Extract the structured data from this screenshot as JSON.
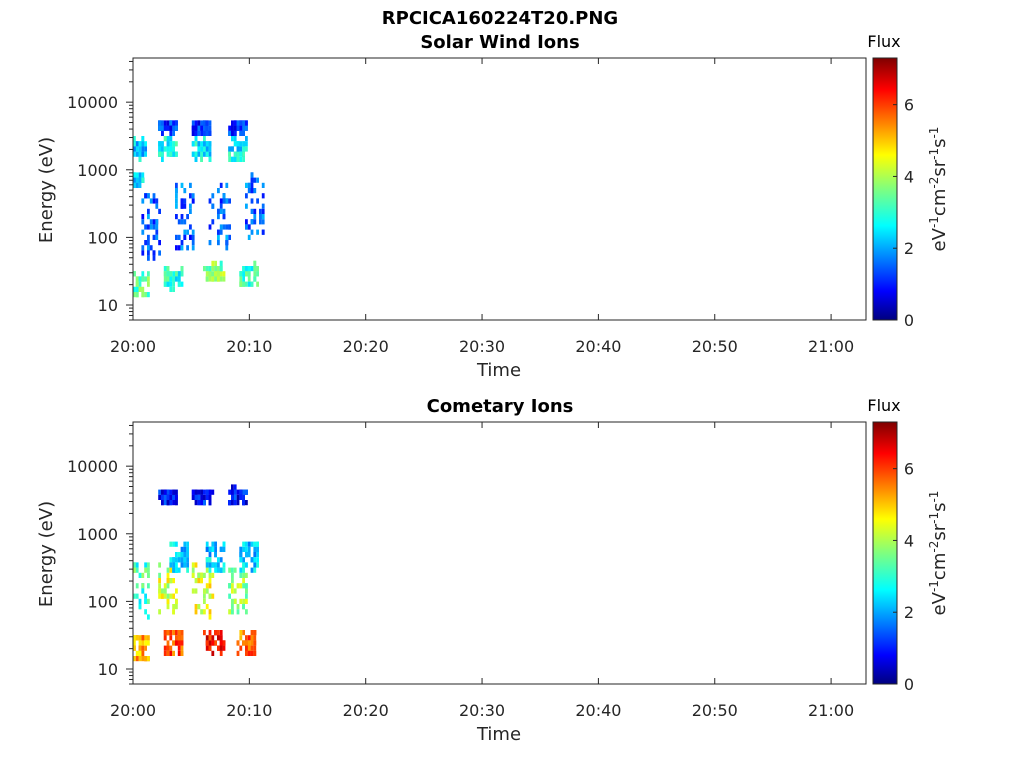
{
  "figure_title": "RPCICA160224T20.PNG",
  "chart_data": [
    {
      "type": "heatmap",
      "title": "Solar Wind Ions",
      "xlabel": "Time",
      "ylabel": "Energy (eV)",
      "y_scale": "log",
      "xlim": [
        "20:00",
        "21:03"
      ],
      "ylim": [
        6,
        45000
      ],
      "x_ticks": [
        "20:00",
        "20:10",
        "20:20",
        "20:30",
        "20:40",
        "20:50",
        "21:00"
      ],
      "y_ticks": [
        "10",
        "100",
        "1000",
        "10000"
      ],
      "colorbar": {
        "title": "Flux",
        "label": "eV-1cm-2sr-1s-1",
        "ticks": [
          "0",
          "2",
          "4",
          "6"
        ],
        "range": [
          0,
          7.3
        ],
        "colormap": "jet"
      },
      "clusters": [
        {
          "t": 0.3,
          "e": 2000,
          "v": 2.5,
          "spread_e": 1.4
        },
        {
          "t": 3.0,
          "e": 2000,
          "v": 2.7,
          "spread_e": 1.4
        },
        {
          "t": 6.0,
          "e": 2000,
          "v": 2.7,
          "spread_e": 1.4
        },
        {
          "t": 9.0,
          "e": 2000,
          "v": 2.7,
          "spread_e": 1.4
        },
        {
          "t": 3.0,
          "e": 4200,
          "v": 1.3,
          "spread_e": 1.2
        },
        {
          "t": 6.0,
          "e": 4200,
          "v": 1.3,
          "spread_e": 1.2
        },
        {
          "t": 9.0,
          "e": 4200,
          "v": 1.3,
          "spread_e": 1.2
        },
        {
          "t": 0.2,
          "e": 700,
          "v": 2.6,
          "spread_e": 1.3
        },
        {
          "t": 1.5,
          "e": 150,
          "v": 1.6,
          "spread_e": 3
        },
        {
          "t": 4.5,
          "e": 200,
          "v": 1.6,
          "spread_e": 3
        },
        {
          "t": 7.5,
          "e": 200,
          "v": 1.6,
          "spread_e": 3
        },
        {
          "t": 10.5,
          "e": 300,
          "v": 1.6,
          "spread_e": 3
        },
        {
          "t": 0.5,
          "e": 20,
          "v": 3.3,
          "spread_e": 1.5
        },
        {
          "t": 3.5,
          "e": 25,
          "v": 3.0,
          "spread_e": 1.4
        },
        {
          "t": 7.0,
          "e": 30,
          "v": 3.7,
          "spread_e": 1.3
        },
        {
          "t": 10.0,
          "e": 28,
          "v": 3.2,
          "spread_e": 1.4
        }
      ]
    },
    {
      "type": "heatmap",
      "title": "Cometary Ions",
      "xlabel": "Time",
      "ylabel": "Energy (eV)",
      "y_scale": "log",
      "xlim": [
        "20:00",
        "21:03"
      ],
      "ylim": [
        6,
        45000
      ],
      "x_ticks": [
        "20:00",
        "20:10",
        "20:20",
        "20:30",
        "20:40",
        "20:50",
        "21:00"
      ],
      "y_ticks": [
        "10",
        "100",
        "1000",
        "10000"
      ],
      "colorbar": {
        "title": "Flux",
        "label": "eV-1cm-2sr-1s-1",
        "ticks": [
          "0",
          "2",
          "4",
          "6"
        ],
        "range": [
          0,
          7.3
        ],
        "colormap": "jet"
      },
      "clusters": [
        {
          "t": 0.5,
          "e": 20,
          "v": 5.2,
          "spread_e": 1.6
        },
        {
          "t": 3.5,
          "e": 25,
          "v": 5.8,
          "spread_e": 1.5
        },
        {
          "t": 7.0,
          "e": 25,
          "v": 6.3,
          "spread_e": 1.4
        },
        {
          "t": 9.8,
          "e": 25,
          "v": 5.6,
          "spread_e": 1.5
        },
        {
          "t": 0.5,
          "e": 150,
          "v": 3.2,
          "spread_e": 2.4
        },
        {
          "t": 3.0,
          "e": 150,
          "v": 4.2,
          "spread_e": 2.4
        },
        {
          "t": 6.0,
          "e": 150,
          "v": 4.4,
          "spread_e": 2.4
        },
        {
          "t": 9.0,
          "e": 150,
          "v": 3.8,
          "spread_e": 2.4
        },
        {
          "t": 4.0,
          "e": 450,
          "v": 2.4,
          "spread_e": 1.6
        },
        {
          "t": 7.0,
          "e": 450,
          "v": 2.4,
          "spread_e": 1.6
        },
        {
          "t": 10.0,
          "e": 450,
          "v": 2.4,
          "spread_e": 1.6
        },
        {
          "t": 3.0,
          "e": 3500,
          "v": 1.0,
          "spread_e": 1.3
        },
        {
          "t": 6.0,
          "e": 3500,
          "v": 1.0,
          "spread_e": 1.3
        },
        {
          "t": 9.0,
          "e": 3500,
          "v": 1.0,
          "spread_e": 1.3
        }
      ]
    }
  ]
}
